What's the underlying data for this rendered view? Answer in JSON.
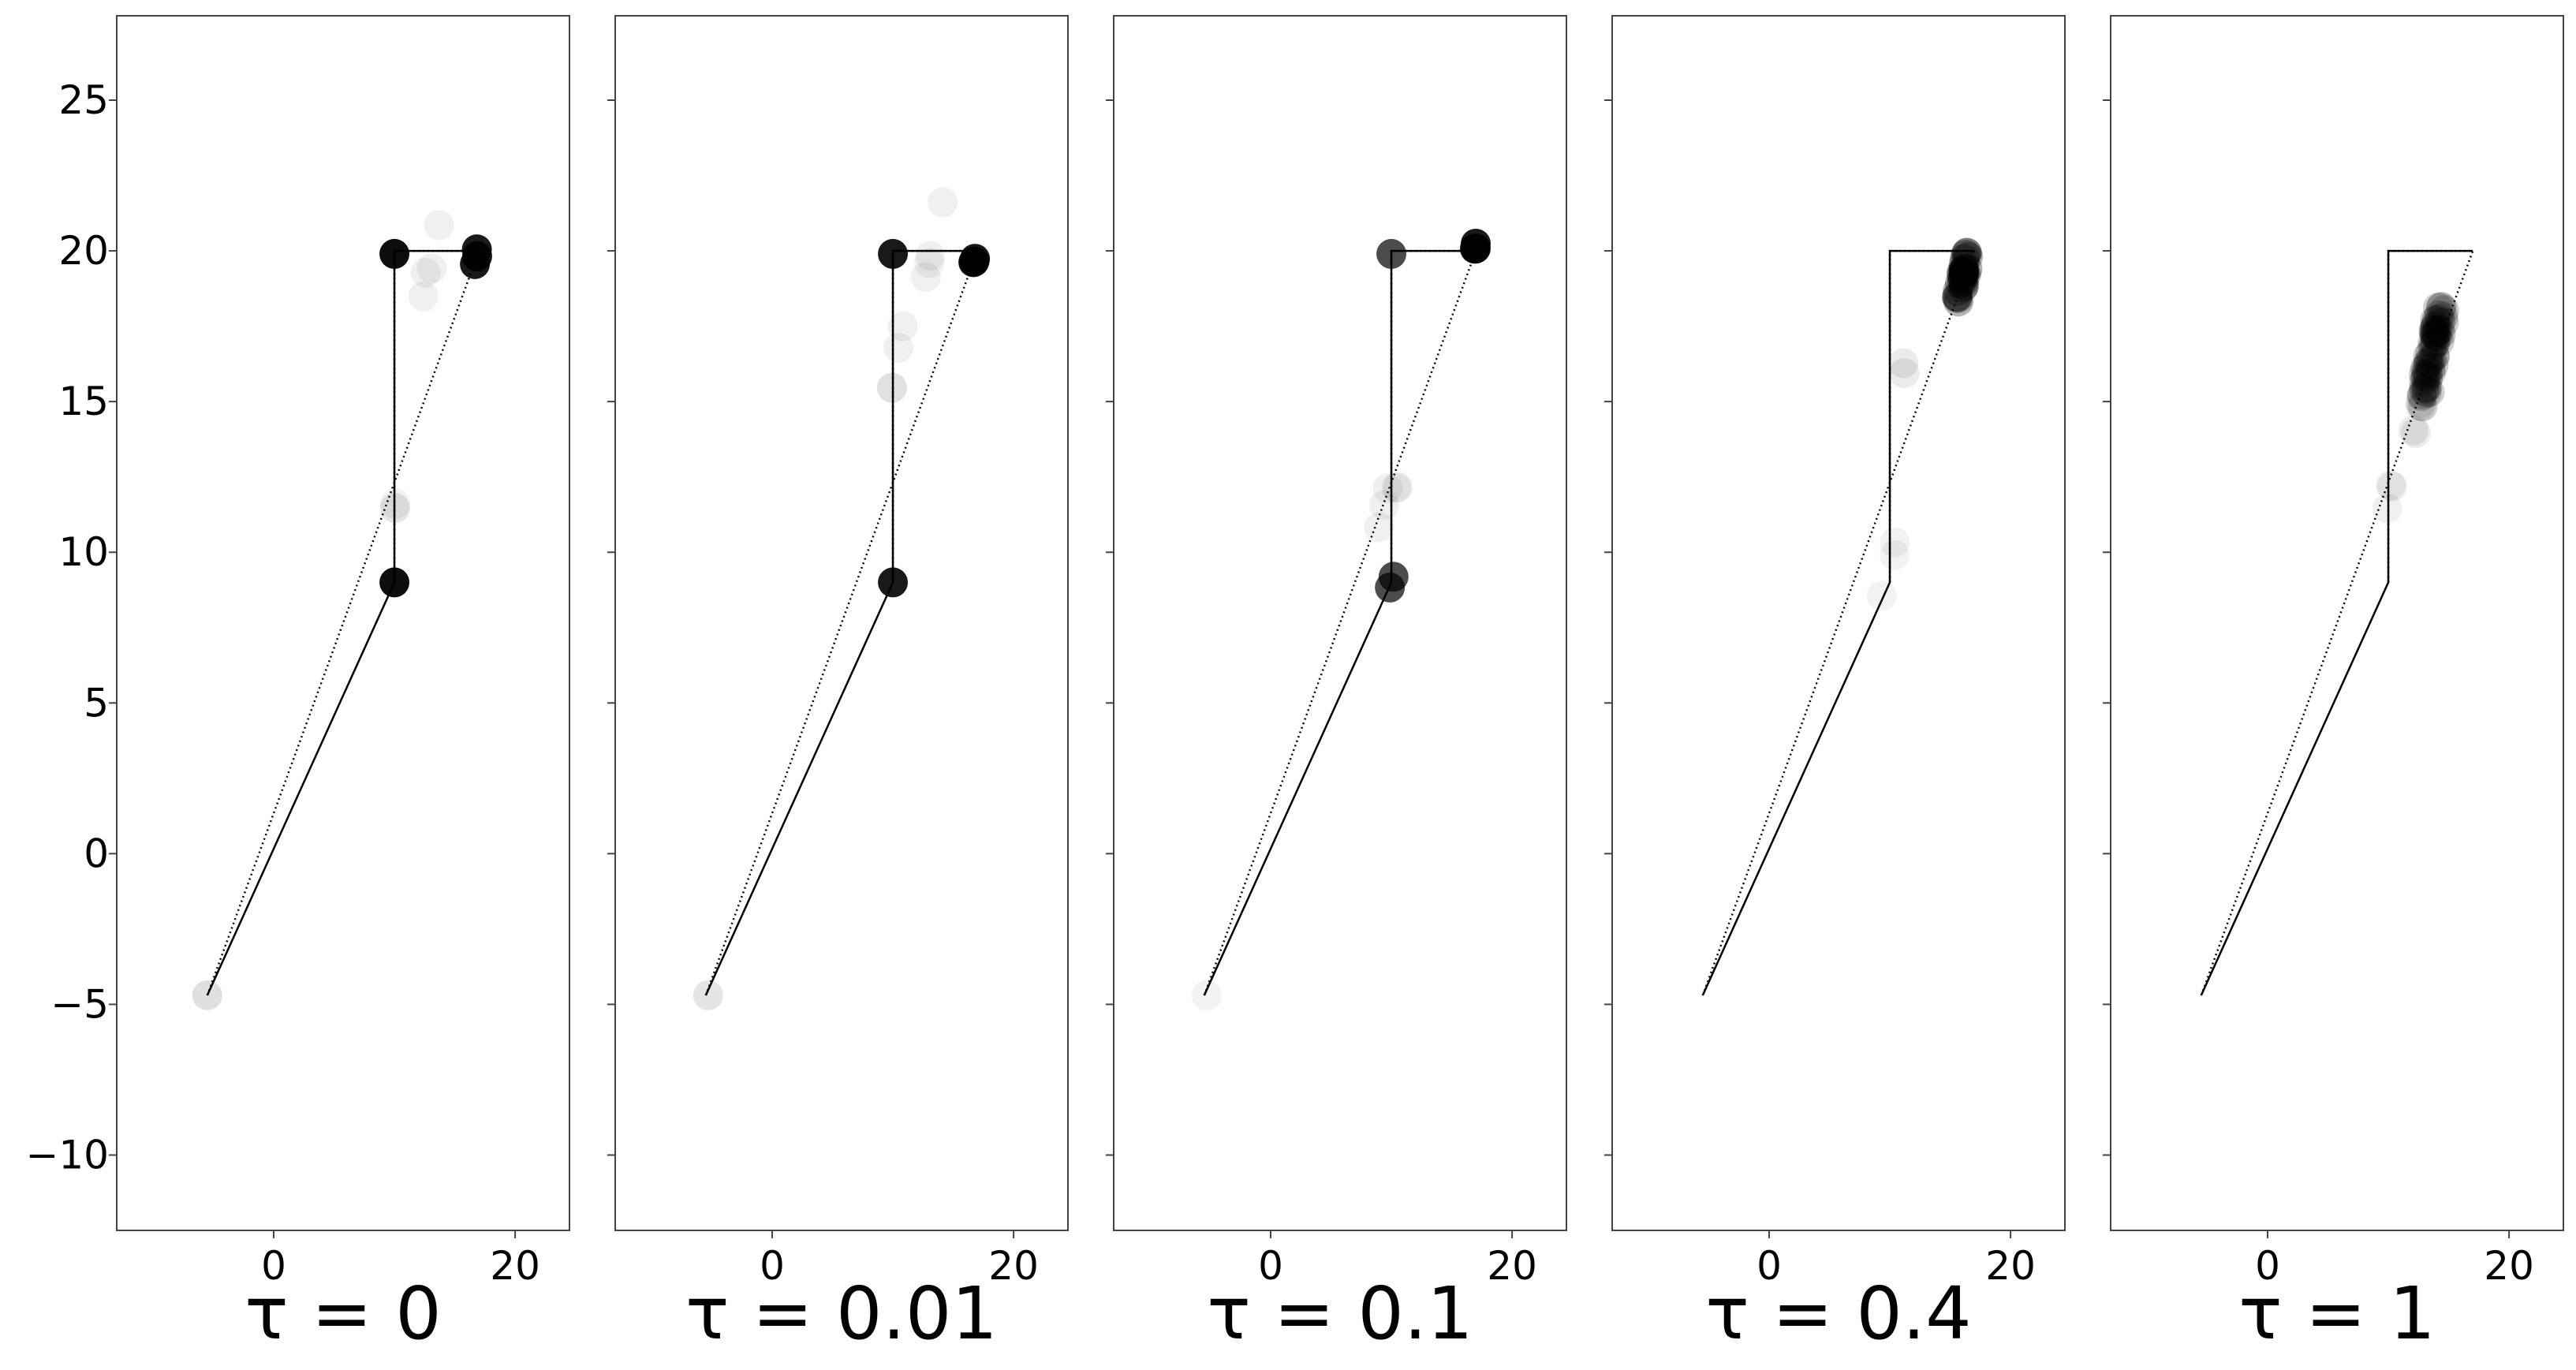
{
  "chart_data": {
    "type": "scatter",
    "description_series": [
      "points",
      "solid path",
      "dotted path"
    ],
    "shared_y_axis": true,
    "xlim": [
      -13,
      24.5
    ],
    "ylim": [
      -12.5,
      27.8
    ],
    "xticks": [
      0,
      20
    ],
    "xtick_labels": [
      "0",
      "20"
    ],
    "yticks": [
      -10,
      -5,
      0,
      5,
      10,
      15,
      20,
      25
    ],
    "ytick_labels": [
      "−10",
      "−5",
      "0",
      "5",
      "10",
      "15",
      "20",
      "25"
    ],
    "grid": false,
    "legend": "none",
    "colors": {
      "points": "#000000",
      "lines": "#000000",
      "frame": "#444444"
    },
    "reference_path": {
      "solid": [
        [
          -5.5,
          -4.7
        ],
        [
          10,
          9
        ],
        [
          10,
          20
        ],
        [
          17,
          20
        ]
      ],
      "dotted": [
        [
          -5.5,
          -4.7
        ],
        [
          17,
          20
        ],
        [
          10,
          20
        ],
        [
          10,
          9
        ]
      ]
    },
    "panels": [
      {
        "title": "τ = 0",
        "clusters": [
          {
            "x": 10,
            "y": 9,
            "spread": 0.2,
            "opacity": 0.95,
            "count": 1
          },
          {
            "x": 10,
            "y": 19.9,
            "spread": 0.2,
            "opacity": 0.95,
            "count": 1
          },
          {
            "x": 16.8,
            "y": 19.9,
            "spread": 0.3,
            "opacity": 0.9,
            "count": 3
          },
          {
            "x": -5.5,
            "y": -4.7,
            "spread": 0.1,
            "opacity": 0.12,
            "count": 1
          },
          {
            "x": 10,
            "y": 11.5,
            "spread": 0.3,
            "opacity": 0.05,
            "count": 3
          },
          {
            "x": 13,
            "y": 19.8,
            "spread": 1.5,
            "opacity": 0.06,
            "count": 4
          }
        ]
      },
      {
        "title": "τ = 0.01",
        "clusters": [
          {
            "x": 10,
            "y": 9,
            "spread": 0.2,
            "opacity": 0.9,
            "count": 1
          },
          {
            "x": 10,
            "y": 19.9,
            "spread": 0.2,
            "opacity": 0.9,
            "count": 1
          },
          {
            "x": 16.8,
            "y": 19.9,
            "spread": 0.3,
            "opacity": 0.9,
            "count": 3
          },
          {
            "x": -5.3,
            "y": -4.7,
            "spread": 0.1,
            "opacity": 0.1,
            "count": 1
          },
          {
            "x": 10.3,
            "y": 16.5,
            "spread": 1.2,
            "opacity": 0.06,
            "count": 4
          },
          {
            "x": 13,
            "y": 19.8,
            "spread": 1.5,
            "opacity": 0.06,
            "count": 4
          }
        ]
      },
      {
        "title": "τ = 0.1",
        "clusters": [
          {
            "x": 10,
            "y": 9,
            "spread": 0.3,
            "opacity": 0.7,
            "count": 2
          },
          {
            "x": 10,
            "y": 19.9,
            "spread": 0.2,
            "opacity": 0.7,
            "count": 1
          },
          {
            "x": 16.8,
            "y": 19.9,
            "spread": 0.3,
            "opacity": 0.9,
            "count": 3
          },
          {
            "x": 10,
            "y": 12,
            "spread": 1.5,
            "opacity": 0.06,
            "count": 5
          },
          {
            "x": -5.3,
            "y": -4.7,
            "spread": 0.1,
            "opacity": 0.05,
            "count": 1
          }
        ]
      },
      {
        "title": "τ = 0.4",
        "clusters": [
          {
            "x": 16.1,
            "y": 19.2,
            "spread": 0.7,
            "opacity": 0.3,
            "count": 30
          },
          {
            "x": 11.2,
            "y": 16.2,
            "spread": 0.4,
            "opacity": 0.08,
            "count": 2
          },
          {
            "x": 10,
            "y": 9.5,
            "spread": 1,
            "opacity": 0.05,
            "count": 3
          }
        ]
      },
      {
        "title": "τ = 1",
        "clusters": [
          {
            "x": 13.6,
            "y": 16.5,
            "spread": 1.3,
            "opacity": 0.18,
            "count": 60
          },
          {
            "x": 12.5,
            "y": 14.6,
            "spread": 0.6,
            "opacity": 0.08,
            "count": 4
          },
          {
            "x": 10,
            "y": 11.8,
            "spread": 0.5,
            "opacity": 0.06,
            "count": 3
          }
        ]
      }
    ]
  }
}
